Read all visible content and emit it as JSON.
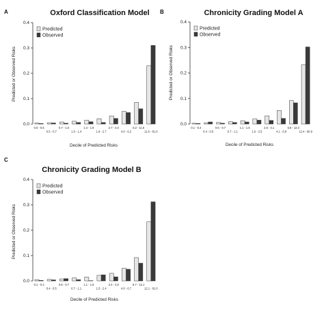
{
  "panels": [
    {
      "label": "A",
      "title": "Oxford Classification Model",
      "xlabel": "Decile of Predicted Risks",
      "ylabel": "Predicted or Observed Risks",
      "legend": [
        "Predicted",
        "Observed"
      ]
    },
    {
      "label": "B",
      "title": "Chronicity Grading Model A",
      "xlabel": "Decile of Predicted Risks",
      "ylabel": "Predicted or Observed Risks",
      "legend": [
        "Predicted",
        "Observed"
      ]
    },
    {
      "label": "C",
      "title": "Chronicity Grading Model B",
      "xlabel": "Decile of Predicted Risks",
      "ylabel": "Predicted or Observed Risks",
      "legend": [
        "Predicted",
        "Observed"
      ]
    }
  ],
  "colors": {
    "predicted": "#e6e6e6",
    "observed": "#3a3a3a",
    "stroke": "#333333"
  },
  "chart_data": [
    {
      "type": "bar",
      "title": "Oxford Classification Model",
      "xlabel": "Decile of Predicted Risks",
      "ylabel": "Predicted or Observed Risks",
      "ylim": [
        0,
        0.4
      ],
      "yticks": [
        "0.0",
        "0.1",
        "0.2",
        "0.3",
        "0.4"
      ],
      "legend_position": "top-left",
      "categories": [
        "0.0 - 0.5",
        "0.5 - 0.7",
        "0.7 - 1.0",
        "1.0 - 1.4",
        "1.4 - 1.9",
        "1.9 - 2.7",
        "2.7 - 4.0",
        "4.0 - 6.2",
        "6.2 - 11.6",
        "11.6 - 81.0"
      ],
      "series": [
        {
          "name": "Predicted",
          "values": [
            0.004,
            0.005,
            0.008,
            0.011,
            0.015,
            0.021,
            0.032,
            0.05,
            0.085,
            0.23
          ]
        },
        {
          "name": "Observed",
          "values": [
            0.002,
            0.004,
            0.003,
            0.006,
            0.009,
            0.006,
            0.022,
            0.045,
            0.06,
            0.31
          ]
        }
      ]
    },
    {
      "type": "bar",
      "title": "Chronicity Grading Model A",
      "xlabel": "Decile of Predicted Risks",
      "ylabel": "Predicted or Observed Risks",
      "ylim": [
        0,
        0.4
      ],
      "yticks": [
        "0.0",
        "0.1",
        "0.2",
        "0.3",
        "0.4"
      ],
      "legend_position": "top-left",
      "categories": [
        "0.1 - 0.4",
        "0.4 - 0.5",
        "0.5 - 0.7",
        "0.7 - 1.1",
        "1.1 - 1.6",
        "1.6 - 2.5",
        "2.5 - 4.1",
        "4.1 - 6.8",
        "6.8 - 12.4",
        "12.4 - 60.9"
      ],
      "series": [
        {
          "name": "Predicted",
          "values": [
            0.003,
            0.005,
            0.006,
            0.009,
            0.013,
            0.02,
            0.032,
            0.053,
            0.092,
            0.232
          ]
        },
        {
          "name": "Observed",
          "values": [
            0.002,
            0.008,
            0.003,
            0.006,
            0.008,
            0.015,
            0.014,
            0.022,
            0.083,
            0.302
          ]
        }
      ]
    },
    {
      "type": "bar",
      "title": "Chronicity Grading Model B",
      "xlabel": "Decile of Predicted Risks",
      "ylabel": "Predicted or Observed Risks",
      "ylim": [
        0,
        0.4
      ],
      "yticks": [
        "0.0",
        "0.1",
        "0.2",
        "0.3",
        "0.4"
      ],
      "legend_position": "top-left",
      "categories": [
        "0.1 - 0.4",
        "0.4 - 0.5",
        "0.5 - 0.7",
        "0.7 - 1.1",
        "1.1 - 1.5",
        "1.5 - 2.4",
        "2.4 - 4.0",
        "4.0 - 6.7",
        "6.7 - 12.1",
        "12.1 - 81.0"
      ],
      "series": [
        {
          "name": "Predicted",
          "values": [
            0.005,
            0.006,
            0.008,
            0.012,
            0.015,
            0.022,
            0.03,
            0.05,
            0.092,
            0.233
          ]
        },
        {
          "name": "Observed",
          "values": [
            0.002,
            0.004,
            0.009,
            0.005,
            0.001,
            0.024,
            0.016,
            0.046,
            0.07,
            0.312
          ]
        }
      ]
    }
  ]
}
